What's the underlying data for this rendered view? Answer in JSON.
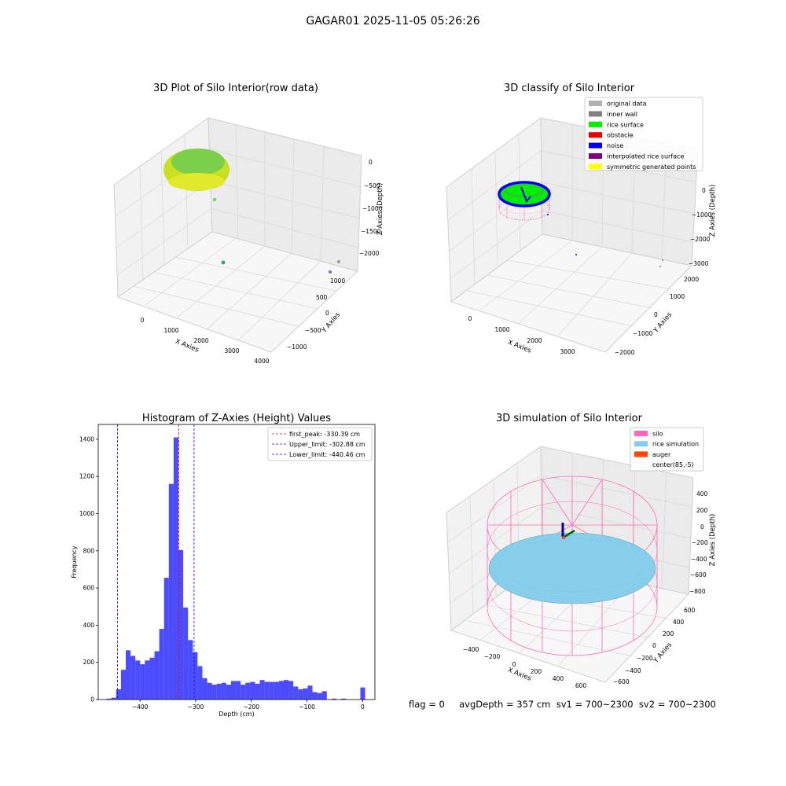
{
  "suptitle": "GAGAR01 2025-11-05 05:26:26",
  "panels": {
    "raw": {
      "title": "3D Plot of Silo Interior(row data)",
      "xlabel": "X Axies",
      "ylabel": "Y Axies",
      "zlabel": "Z Axies (Depth)",
      "xticks": [
        "0",
        "1000",
        "2000",
        "3000",
        "4000"
      ],
      "yticks": [
        "−1000",
        "−500",
        "0",
        "500",
        "1000"
      ],
      "zticks": [
        "0",
        "−500",
        "−1000",
        "−1500",
        "−2000"
      ]
    },
    "classify": {
      "title": "3D classify of Silo Interior",
      "xlabel": "X Axies",
      "ylabel": "Y Axies",
      "zlabel": "Z Axies (Depth)",
      "xticks": [
        "0",
        "1000",
        "2000",
        "3000"
      ],
      "yticks": [
        "−2000",
        "−1000",
        "0",
        "1000",
        "2000"
      ],
      "zticks": [
        "0",
        "−1000",
        "−2000",
        "−3000"
      ],
      "legend": [
        {
          "label": "original data",
          "color": "#b0b0b0"
        },
        {
          "label": "inner wall",
          "color": "#808080"
        },
        {
          "label": "rice surface",
          "color": "#00ee00"
        },
        {
          "label": "obstacle",
          "color": "#ee0000"
        },
        {
          "label": "noise",
          "color": "#0000ee"
        },
        {
          "label": "interpolated rice surface",
          "color": "#800080"
        },
        {
          "label": "symmetric generated points",
          "color": "#ffff00"
        }
      ]
    },
    "sim": {
      "title": "3D simulation of Silo Interior",
      "xlabel": "X Axies",
      "ylabel": "Y Axies",
      "zlabel": "Z Axies (Depth)",
      "xticks": [
        "−400",
        "−200",
        "0",
        "200",
        "400",
        "600"
      ],
      "yticks": [
        "−600",
        "−400",
        "−200",
        "0",
        "200",
        "400",
        "600"
      ],
      "zticks": [
        "400",
        "200",
        "0",
        "−200",
        "−400",
        "−600",
        "−800"
      ],
      "legend": [
        {
          "label": "silo",
          "color": "#ff69b4"
        },
        {
          "label": "rice simulation",
          "color": "#87ceeb"
        },
        {
          "label": "auger",
          "color": "#ff4500"
        },
        {
          "label": "center(85,-5)",
          "color": "#ffffff"
        }
      ]
    }
  },
  "status_line": "flag = 0     avgDepth = 357 cm  sv1 = 700~2300  sv2 = 700~2300",
  "chart_data": {
    "type": "bar",
    "title": "Histogram of Z-Axies (Height) Values",
    "xlabel": "Depth (cm)",
    "ylabel": "Frequency",
    "xlim": [
      -475,
      22
    ],
    "ylim": [
      0,
      1480
    ],
    "xticks": [
      -400,
      -300,
      -200,
      -100,
      0
    ],
    "yticks": [
      0,
      200,
      400,
      600,
      800,
      1000,
      1200,
      1400
    ],
    "bin_width": 8.6,
    "bin_starts": [
      -460,
      -451.4,
      -442.8,
      -434.2,
      -425.6,
      -417,
      -408.4,
      -399.8,
      -391.2,
      -382.6,
      -374,
      -365.4,
      -356.8,
      -348.2,
      -339.6,
      -331,
      -322.4,
      -313.8,
      -305.2,
      -296.6,
      -288,
      -279.4,
      -270.8,
      -262.2,
      -253.6,
      -245,
      -236.4,
      -227.8,
      -219.2,
      -210.6,
      -202,
      -193.4,
      -184.8,
      -176.2,
      -167.6,
      -159,
      -150.4,
      -141.8,
      -133.2,
      -124.6,
      -116,
      -107.4,
      -98.8,
      -90.2,
      -81.6,
      -73,
      -64.4,
      -55.8,
      -47.2,
      -38.6,
      -30,
      -21.4,
      -12.8,
      -4.2
    ],
    "values": [
      5,
      10,
      55,
      160,
      265,
      235,
      210,
      190,
      210,
      225,
      260,
      380,
      655,
      1160,
      1410,
      805,
      495,
      320,
      255,
      180,
      115,
      90,
      80,
      85,
      90,
      80,
      100,
      100,
      80,
      90,
      95,
      85,
      105,
      95,
      95,
      95,
      100,
      105,
      100,
      70,
      55,
      60,
      75,
      40,
      35,
      45,
      0,
      5,
      0,
      5,
      0,
      0,
      0,
      65
    ],
    "lines": [
      {
        "label": "first_peak: -330.39 cm",
        "value": -330.39,
        "color": "#ff0000"
      },
      {
        "label": "Upper_limit: -302.88 cm",
        "value": -302.88,
        "color": "#0000ff"
      },
      {
        "label": "Lower_limit: -440.46 cm",
        "value": -440.46,
        "color": "#0000ff"
      }
    ]
  }
}
